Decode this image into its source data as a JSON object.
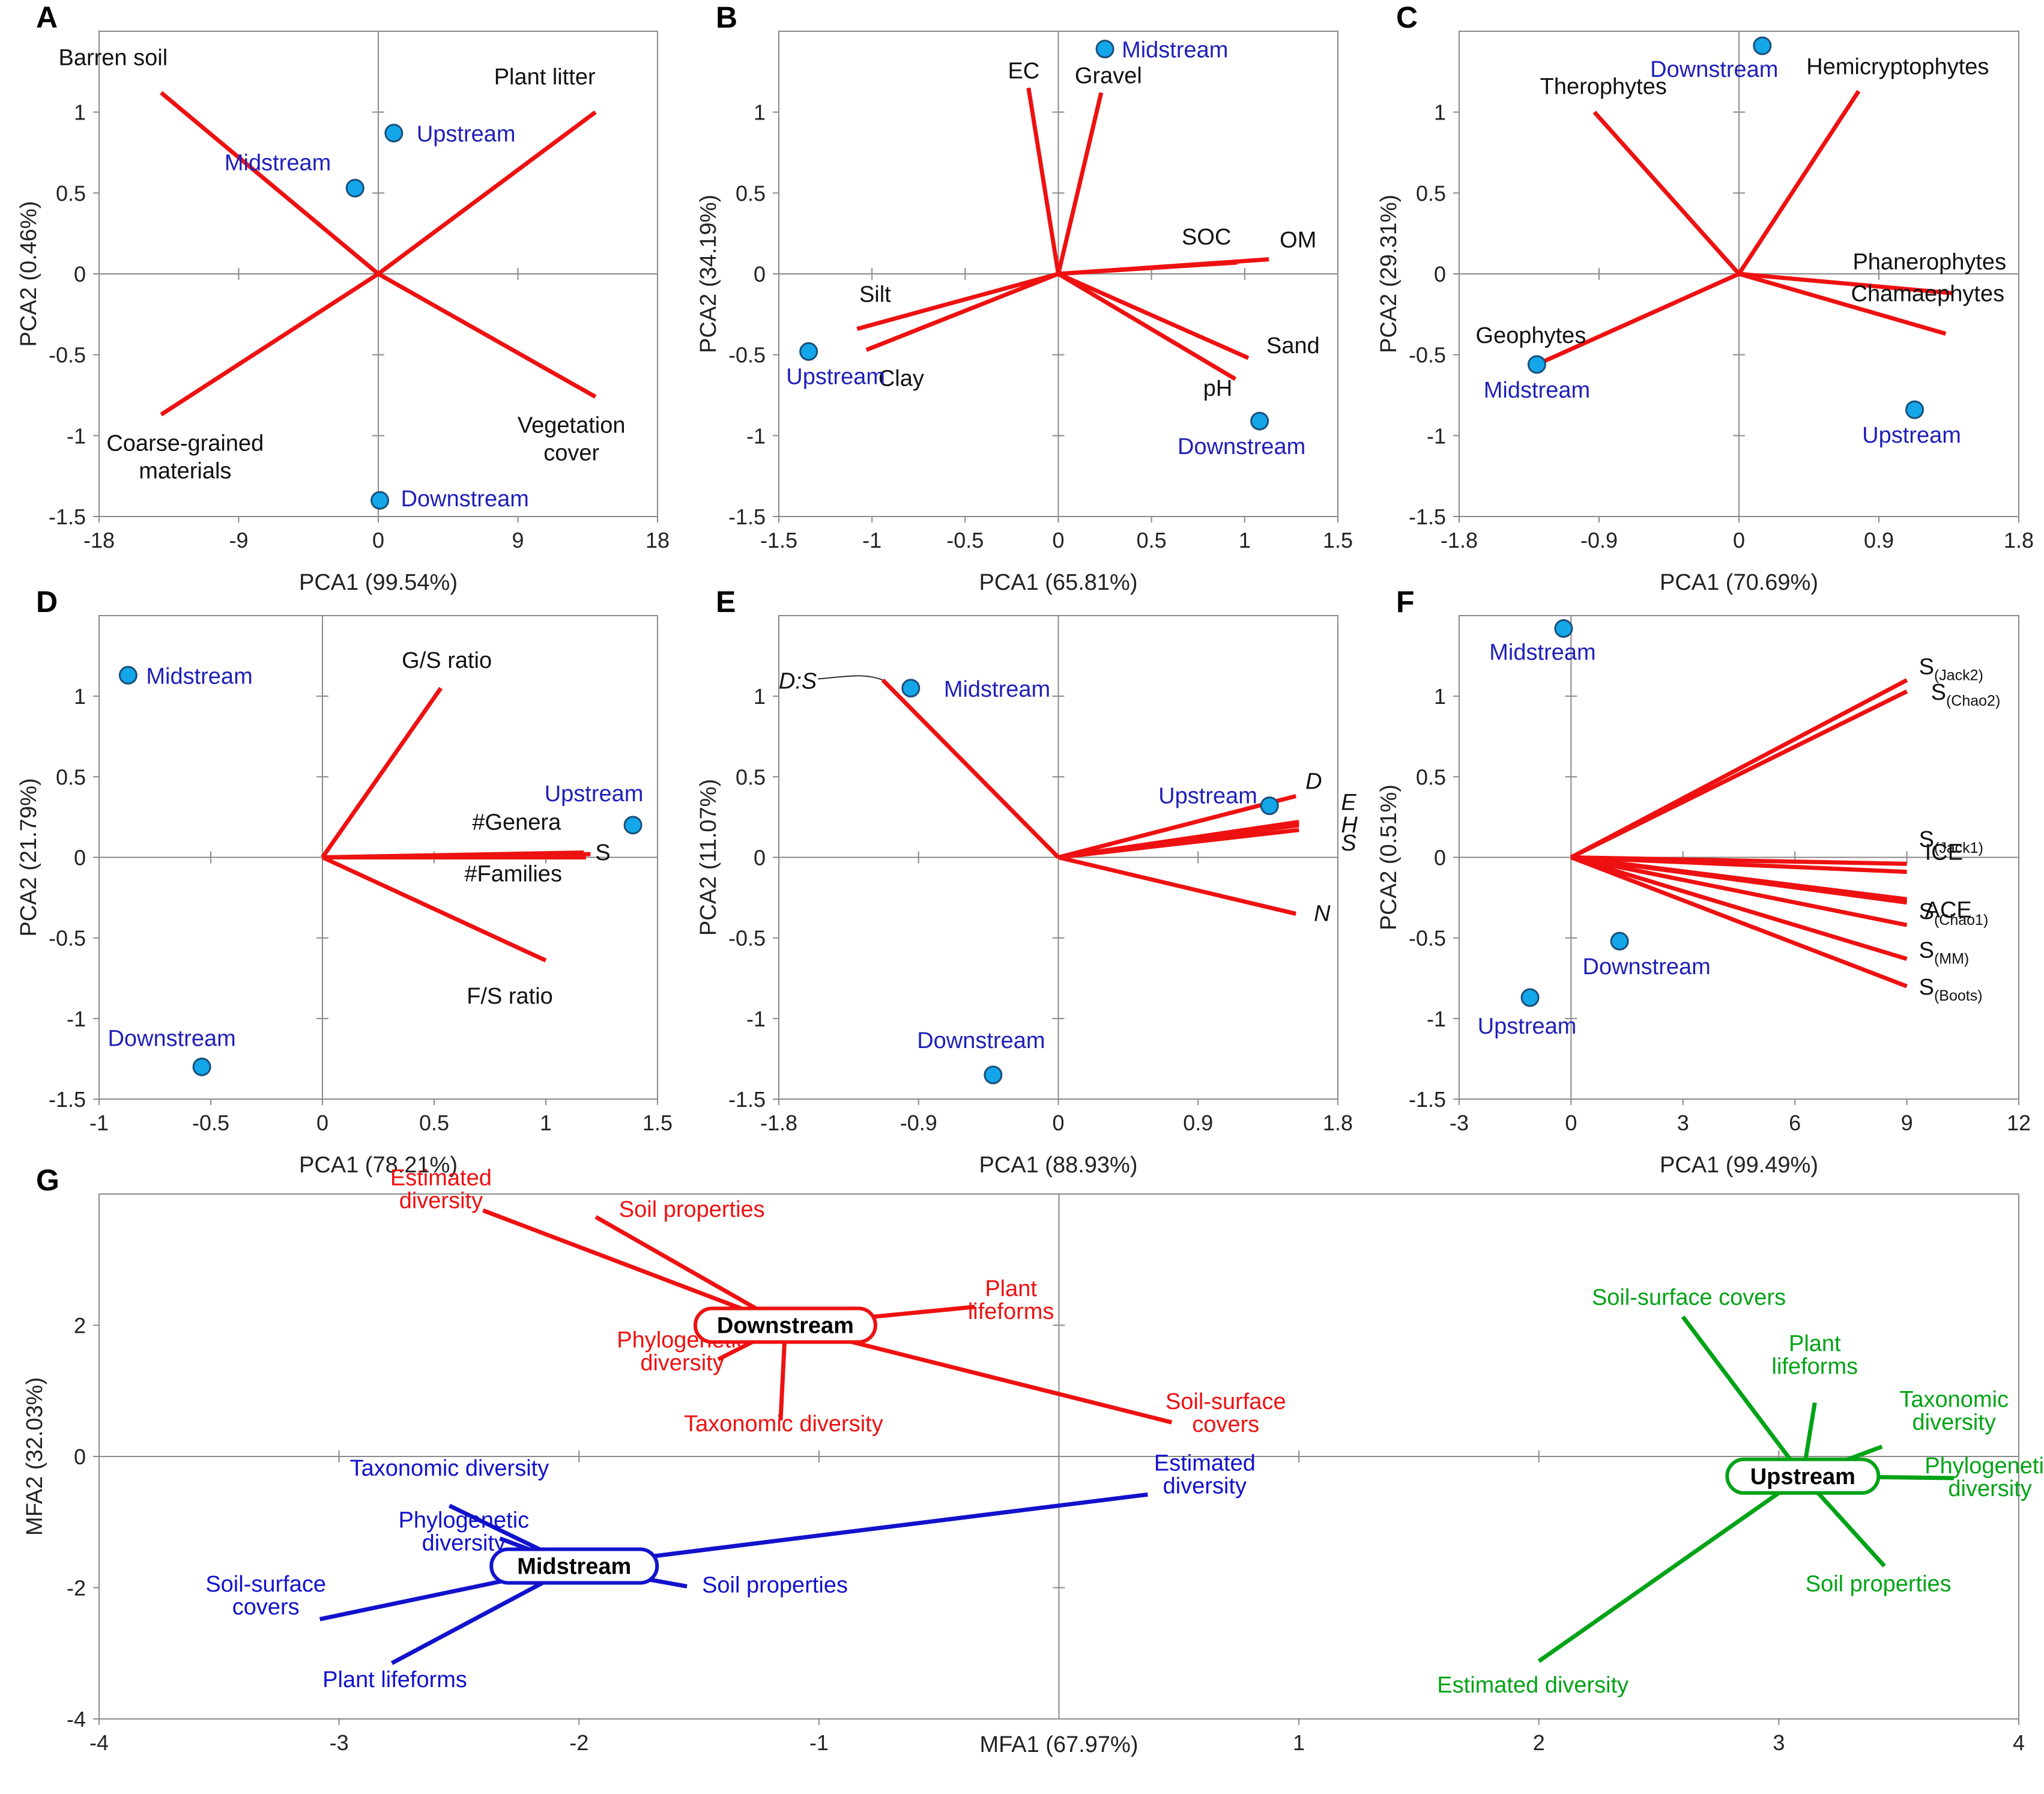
{
  "colors": {
    "vector": "#ee1111",
    "site_text": "#1f1fb8",
    "site_point": "#13a6e8",
    "midstream": "#1212cc",
    "downstream": "#ee1111",
    "upstream": "#00a316"
  },
  "chart_data": [
    {
      "id": "A",
      "type": "scatter",
      "title": "A",
      "xlabel": "PCA1 (99.54%)",
      "ylabel": "PCA2 (0.46%)",
      "xlim": [
        -18,
        18
      ],
      "ylim": [
        -1.5,
        1.5
      ],
      "xticks": [
        "-18",
        "-9",
        "0",
        "9",
        "18"
      ],
      "yticks": [
        "-1.5",
        "-1",
        "-0.5",
        "0",
        "0.5",
        "1"
      ],
      "sites": [
        {
          "name": "Upstream",
          "x": 1,
          "y": 0.87
        },
        {
          "name": "Midstream",
          "x": -1.5,
          "y": 0.53
        },
        {
          "name": "Downstream",
          "x": 0.1,
          "y": -1.4
        }
      ],
      "vectors": [
        {
          "name": "Barren soil",
          "x": -14,
          "y": 1.12
        },
        {
          "name": "Plant litter",
          "x": 14,
          "y": 1.0
        },
        {
          "name": "Coarse-grained materials",
          "x": -14,
          "y": -0.87
        },
        {
          "name": "Vegetation cover",
          "x": 14,
          "y": -0.76
        }
      ]
    },
    {
      "id": "B",
      "type": "scatter",
      "title": "B",
      "xlabel": "PCA1 (65.81%)",
      "ylabel": "PCA2 (34.19%)",
      "xlim": [
        -1.5,
        1.5
      ],
      "ylim": [
        -1.5,
        1.5
      ],
      "xticks": [
        "-1.5",
        "-1",
        "-0.5",
        "0",
        "0.5",
        "1",
        "1.5"
      ],
      "yticks": [
        "-1.5",
        "-1",
        "-0.5",
        "0",
        "0.5",
        "1"
      ],
      "sites": [
        {
          "name": "Midstream",
          "x": 0.25,
          "y": 1.39
        },
        {
          "name": "Upstream",
          "x": -1.34,
          "y": -0.48
        },
        {
          "name": "Downstream",
          "x": 1.08,
          "y": -0.91
        }
      ],
      "vectors": [
        {
          "name": "EC",
          "x": -0.16,
          "y": 1.15
        },
        {
          "name": "Gravel",
          "x": 0.23,
          "y": 1.12
        },
        {
          "name": "SOC",
          "x": 0.96,
          "y": 0.07
        },
        {
          "name": "OM",
          "x": 1.13,
          "y": 0.09
        },
        {
          "name": "Silt",
          "x": -1.08,
          "y": -0.34
        },
        {
          "name": "Clay",
          "x": -1.03,
          "y": -0.47
        },
        {
          "name": "Sand",
          "x": 1.02,
          "y": -0.52
        },
        {
          "name": "pH",
          "x": 0.95,
          "y": -0.65
        }
      ]
    },
    {
      "id": "C",
      "type": "scatter",
      "title": "C",
      "xlabel": "PCA1 (70.69%)",
      "ylabel": "PCA2 (29.31%)",
      "xlim": [
        -1.8,
        1.8
      ],
      "ylim": [
        -1.5,
        1.5
      ],
      "xticks": [
        "-1.8",
        "-0.9",
        "0",
        "0.9",
        "1.8"
      ],
      "yticks": [
        "-1.5",
        "-1",
        "-0.5",
        "0",
        "0.5",
        "1"
      ],
      "sites": [
        {
          "name": "Downstream",
          "x": 0.15,
          "y": 1.41
        },
        {
          "name": "Midstream",
          "x": -1.3,
          "y": -0.56
        },
        {
          "name": "Upstream",
          "x": 1.13,
          "y": -0.84
        }
      ],
      "vectors": [
        {
          "name": "Therophytes",
          "x": -0.93,
          "y": 1.0
        },
        {
          "name": "Hemicryptophytes",
          "x": 0.77,
          "y": 1.13
        },
        {
          "name": "Phanerophytes",
          "x": 1.38,
          "y": -0.12
        },
        {
          "name": "Chamaephytes",
          "x": 1.33,
          "y": -0.37
        },
        {
          "name": "Geophytes",
          "x": -1.3,
          "y": -0.56
        }
      ]
    },
    {
      "id": "D",
      "type": "scatter",
      "title": "D",
      "xlabel": "PCA1 (78.21%)",
      "ylabel": "PCA2 (21.79%)",
      "xlim": [
        -1,
        1.5
      ],
      "ylim": [
        -1.5,
        1.5
      ],
      "xticks": [
        "-1",
        "-0.5",
        "0",
        "0.5",
        "1",
        "1.5"
      ],
      "yticks": [
        "-1.5",
        "-1",
        "-0.5",
        "0",
        "0.5",
        "1"
      ],
      "sites": [
        {
          "name": "Midstream",
          "x": -0.87,
          "y": 1.13
        },
        {
          "name": "Upstream",
          "x": 1.39,
          "y": 0.2
        },
        {
          "name": "Downstream",
          "x": -0.54,
          "y": -1.3
        }
      ],
      "vectors": [
        {
          "name": "G/S ratio",
          "x": 0.53,
          "y": 1.05
        },
        {
          "name": "#Genera",
          "x": 1.17,
          "y": 0.03
        },
        {
          "name": "S",
          "x": 1.2,
          "y": 0.02
        },
        {
          "name": "#Families",
          "x": 1.18,
          "y": 0.0
        },
        {
          "name": "F/S ratio",
          "x": 1.0,
          "y": -0.64
        }
      ]
    },
    {
      "id": "E",
      "type": "scatter",
      "title": "E",
      "xlabel": "PCA1 (88.93%)",
      "ylabel": "PCA2 (11.07%)",
      "xlim": [
        -1.8,
        1.8
      ],
      "ylim": [
        -1.5,
        1.5
      ],
      "xticks": [
        "-1.8",
        "-0.9",
        "0",
        "0.9",
        "1.8"
      ],
      "yticks": [
        "-1.5",
        "-1",
        "-0.5",
        "0",
        "0.5",
        "1"
      ],
      "sites": [
        {
          "name": "Midstream",
          "x": -0.95,
          "y": 1.05
        },
        {
          "name": "Upstream",
          "x": 1.36,
          "y": 0.32
        },
        {
          "name": "Downstream",
          "x": -0.42,
          "y": -1.35
        }
      ],
      "vectors": [
        {
          "name": "D:S",
          "x": -1.13,
          "y": 1.1
        },
        {
          "name": "D",
          "x": 1.53,
          "y": 0.38
        },
        {
          "name": "E",
          "x": 1.55,
          "y": 0.22
        },
        {
          "name": "H",
          "x": 1.55,
          "y": 0.2
        },
        {
          "name": "S",
          "x": 1.55,
          "y": 0.17
        },
        {
          "name": "N",
          "x": 1.53,
          "y": -0.35
        }
      ]
    },
    {
      "id": "F",
      "type": "scatter",
      "title": "F",
      "xlabel": "PCA1 (99.49%)",
      "ylabel": "PCA2 (0.51%)",
      "xlim": [
        -3,
        12
      ],
      "ylim": [
        -1.5,
        1.5
      ],
      "xticks": [
        "-3",
        "0",
        "3",
        "6",
        "9",
        "12"
      ],
      "yticks": [
        "-1.5",
        "-1",
        "-0.5",
        "0",
        "0.5",
        "1"
      ],
      "sites": [
        {
          "name": "Midstream",
          "x": -0.2,
          "y": 1.42
        },
        {
          "name": "Downstream",
          "x": 1.3,
          "y": -0.52
        },
        {
          "name": "Upstream",
          "x": -1.1,
          "y": -0.87
        }
      ],
      "vectors": [
        {
          "name": "S",
          "sub": "(Jack2)",
          "x": 9.0,
          "y": 1.1
        },
        {
          "name": "S",
          "sub": "(Chao2)",
          "x": 9.0,
          "y": 1.03
        },
        {
          "name": "S",
          "sub": "(Jack1)",
          "x": 9.0,
          "y": -0.04
        },
        {
          "name": "ICE",
          "x": 9.0,
          "y": -0.09
        },
        {
          "name": "ACE",
          "x": 9.0,
          "y": -0.26
        },
        {
          "name": "ACE",
          "x": 9.0,
          "y": -0.28
        },
        {
          "name": "S",
          "sub": "(Chao1)",
          "x": 9.0,
          "y": -0.42
        },
        {
          "name": "S",
          "sub": "(MM)",
          "x": 9.0,
          "y": -0.63
        },
        {
          "name": "S",
          "sub": "(Boots)",
          "x": 9.0,
          "y": -0.8
        }
      ]
    },
    {
      "id": "G",
      "type": "scatter",
      "title": "G",
      "xlabel": "MFA1 (67.97%)",
      "ylabel": "MFA2 (32.03%)",
      "xlim": [
        -4,
        4
      ],
      "ylim": [
        -4,
        4
      ],
      "xticks": [
        "-4",
        "-3",
        "-2",
        "-1",
        "1",
        "2",
        "3",
        "4"
      ],
      "yticks": [
        "-4",
        "-2",
        "0",
        "2"
      ],
      "groups": [
        {
          "name": "Downstream",
          "color": "#ee1111",
          "center": {
            "x": -1.14,
            "y": 2.0
          },
          "lines": [
            {
              "name": "Estimated diversity",
              "x": -2.4,
              "y": 3.75
            },
            {
              "name": "Soil properties",
              "x": -1.93,
              "y": 3.65
            },
            {
              "name": "Plant lifeforms",
              "x": -0.35,
              "y": 2.28
            },
            {
              "name": "Phylogenetic diversity",
              "x": -1.42,
              "y": 1.48
            },
            {
              "name": "Taxonomic diversity",
              "x": -1.16,
              "y": 0.55
            },
            {
              "name": "Soil-surface covers",
              "x": 0.47,
              "y": 0.52
            }
          ]
        },
        {
          "name": "Midstream",
          "color": "#1212cc",
          "center": {
            "x": -2.02,
            "y": -1.67
          },
          "lines": [
            {
              "name": "Taxonomic diversity",
              "x": -2.54,
              "y": -0.75
            },
            {
              "name": "Phylogenetic diversity",
              "x": -2.33,
              "y": -1.25
            },
            {
              "name": "Soil-surface covers",
              "x": -3.08,
              "y": -2.48
            },
            {
              "name": "Plant lifeforms",
              "x": -2.78,
              "y": -3.15
            },
            {
              "name": "Soil properties",
              "x": -1.55,
              "y": -1.98
            },
            {
              "name": "Estimated diversity",
              "x": 0.37,
              "y": -0.58
            }
          ]
        },
        {
          "name": "Upstream",
          "color": "#00a316",
          "center": {
            "x": 3.1,
            "y": -0.3
          },
          "lines": [
            {
              "name": "Soil-surface covers",
              "x": 2.6,
              "y": 2.13
            },
            {
              "name": "Plant lifeforms",
              "x": 3.15,
              "y": 0.82
            },
            {
              "name": "Taxonomic diversity",
              "x": 3.43,
              "y": 0.15
            },
            {
              "name": "Phylogenetic diversity",
              "x": 3.73,
              "y": -0.33
            },
            {
              "name": "Soil properties",
              "x": 3.44,
              "y": -1.67
            },
            {
              "name": "Estimated diversity",
              "x": 2.0,
              "y": -3.12
            }
          ]
        }
      ]
    }
  ]
}
